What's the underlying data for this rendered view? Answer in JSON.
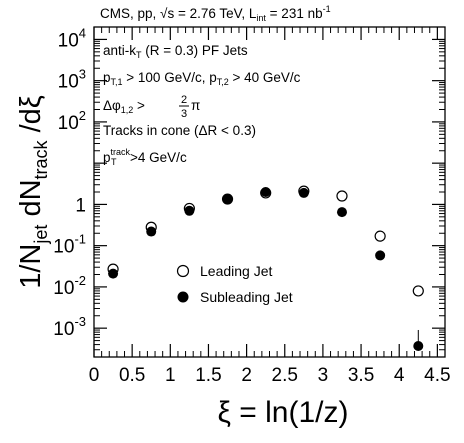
{
  "chart_data": {
    "type": "scatter",
    "title": "CMS, pp, √s = 2.76 TeV, L_int = 231 nb⁻¹",
    "title_parts": {
      "pre": "CMS, pp, ",
      "sqrt": "√",
      "s_eq": "s = 2.76 TeV, L",
      "lint_sub": "int",
      "lumi": " = 231 nb",
      "lumi_sup": "-1"
    },
    "xlabel": "ξ = ln(1/z)",
    "ylabel": "1/N_jet dN_track/dξ",
    "ylabel_parts": {
      "one_over_n": "1/N",
      "jet": "jet",
      "dn": "dN",
      "track": "track",
      "dxi": "/dξ"
    },
    "xlim": [
      0,
      4.6
    ],
    "ylim": [
      0.0002,
      20000
    ],
    "yscale": "log",
    "x_ticks": [
      "0",
      "0.5",
      "1",
      "1.5",
      "2",
      "2.5",
      "3",
      "3.5",
      "4",
      "4.5"
    ],
    "y_ticks": [
      {
        "base": "10",
        "exp": "-3"
      },
      {
        "base": "10",
        "exp": "-2"
      },
      {
        "base": "10",
        "exp": "-1"
      },
      {
        "base": "1",
        "exp": ""
      },
      {
        "base": "10",
        "exp": "2"
      },
      {
        "base": "10",
        "exp": "3"
      },
      {
        "base": "10",
        "exp": "4"
      }
    ],
    "y_tick_values": [
      0.001,
      0.01,
      0.1,
      1,
      100,
      1000,
      10000
    ],
    "annotations": {
      "line1_pre": "anti-k",
      "line1_sub": "T",
      "line1_post": " (R = 0.3) PF Jets",
      "line2_p1": "p",
      "line2_sub1": "T,1",
      "line2_mid": " > 100 GeV/c, p",
      "line2_sub2": "T,2",
      "line2_post": " > 40 GeV/c",
      "line3_pre": "Δφ",
      "line3_sub": "1,2",
      "line3_gt": " > ",
      "line3_num": "2",
      "line3_den": "3",
      "line3_post": "π",
      "line4": "Tracks in cone (ΔR < 0.3)",
      "line5_pre": "p",
      "line5_sup": "track",
      "line5_sub": "T",
      "line5_post": ">4 GeV/c"
    },
    "legend_position": "lower-middle",
    "series": [
      {
        "name": "Leading Jet",
        "marker": "open-circle",
        "x": [
          0.25,
          0.75,
          1.25,
          1.75,
          2.25,
          2.75,
          3.25,
          3.75,
          4.25
        ],
        "y": [
          0.027,
          0.28,
          0.8,
          1.35,
          1.9,
          2.1,
          1.6,
          0.17,
          0.008
        ]
      },
      {
        "name": "Subleading Jet",
        "marker": "filled-circle",
        "x": [
          0.25,
          0.75,
          1.25,
          1.75,
          2.25,
          2.75,
          3.25,
          3.75,
          4.25
        ],
        "y": [
          0.021,
          0.22,
          0.7,
          1.35,
          2.0,
          1.9,
          0.65,
          0.058,
          0.00037
        ]
      }
    ],
    "colors": {
      "marker": "#000000",
      "axes": "#000000",
      "background": "#ffffff"
    }
  }
}
